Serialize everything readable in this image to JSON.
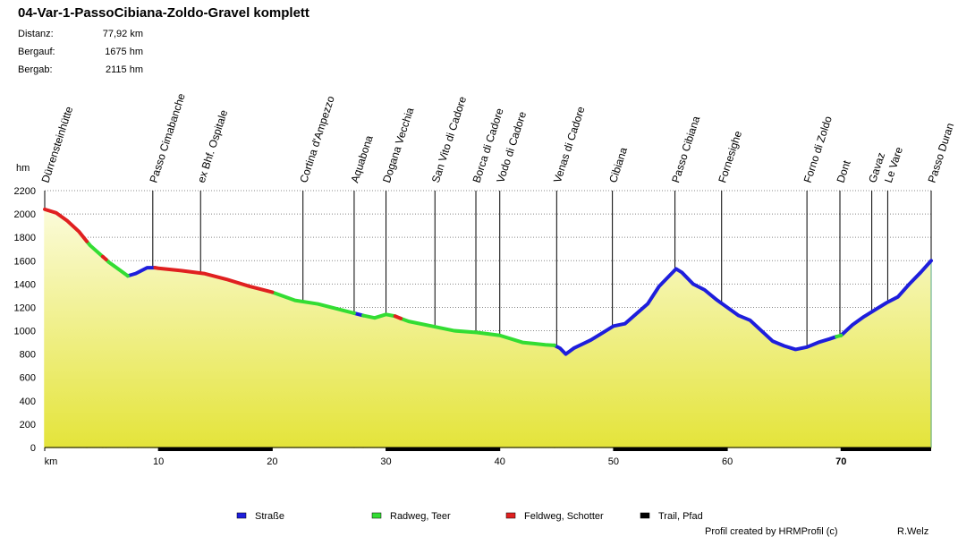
{
  "chart_data": {
    "type": "line",
    "title": "04-Var-1-PassoCibiana-Zoldo-Gravel komplett",
    "info": [
      {
        "label": "Distanz:",
        "value": "77,92 km"
      },
      {
        "label": "Bergauf:",
        "value": "1675 hm"
      },
      {
        "label": "Bergab:",
        "value": "2115 hm"
      }
    ],
    "y_label": "hm",
    "xlim": [
      0,
      77.92
    ],
    "xticks": [
      {
        "value": 0,
        "label": "km"
      },
      10,
      20,
      30,
      40,
      50,
      60,
      70
    ],
    "ylim": [
      0,
      2200
    ],
    "yticks": [
      0,
      200,
      400,
      600,
      800,
      1000,
      1200,
      1400,
      1600,
      1800,
      2000,
      2200
    ],
    "grid": true,
    "series": [
      {
        "name": "Straße",
        "color": "#1e1edc",
        "x": [
          7.3,
          8,
          9,
          9.7,
          null,
          27.2,
          28,
          null,
          44.8,
          45.3,
          45.8,
          46.5,
          48,
          49,
          50,
          51,
          53,
          54,
          55.5,
          56,
          57,
          58,
          59,
          60,
          61,
          62,
          63,
          64,
          65,
          66,
          67,
          68,
          69,
          69.6,
          null,
          70,
          71,
          72,
          73,
          74,
          75,
          76,
          77,
          77.92
        ],
        "values": [
          1470,
          1490,
          1540,
          1540,
          null,
          1150,
          1130,
          null,
          875,
          850,
          800,
          850,
          920,
          980,
          1040,
          1060,
          1230,
          1380,
          1530,
          1500,
          1400,
          1350,
          1270,
          1200,
          1130,
          1090,
          1000,
          910,
          870,
          840,
          860,
          900,
          930,
          950,
          null,
          960,
          1050,
          1120,
          1180,
          1240,
          1290,
          1400,
          1500,
          1600
        ]
      },
      {
        "name": "Radweg, Teer",
        "color": "#33dd33",
        "x": [
          3.7,
          4,
          5.1,
          null,
          5.4,
          5.6,
          7.3,
          null,
          20,
          22,
          24,
          26,
          27.2,
          null,
          28,
          29,
          30,
          30.8,
          null,
          31.3,
          32,
          34,
          36,
          38,
          40,
          42,
          43,
          44,
          44.8,
          null,
          69.6,
          70
        ],
        "values": [
          1765,
          1730,
          1635,
          null,
          1610,
          1590,
          1470,
          null,
          1330,
          1260,
          1230,
          1180,
          1150,
          null,
          1130,
          1110,
          1140,
          1125,
          null,
          1105,
          1080,
          1040,
          1000,
          985,
          960,
          900,
          890,
          880,
          875,
          null,
          950,
          960
        ]
      },
      {
        "name": "Feldweg, Schotter",
        "color": "#e02020",
        "x": [
          0,
          1,
          2,
          3,
          3.7,
          null,
          5.1,
          5.4,
          null,
          9.7,
          10,
          12,
          14,
          16,
          18,
          20,
          null,
          30.8,
          31.3
        ],
        "values": [
          2040,
          2010,
          1940,
          1850,
          1765,
          null,
          1635,
          1610,
          null,
          1540,
          1535,
          1515,
          1490,
          1440,
          1380,
          1330,
          null,
          1125,
          1105
        ]
      },
      {
        "name": "Trail, Pfad",
        "color": "#000000",
        "x": [],
        "values": []
      }
    ],
    "waypoints": [
      {
        "name": "Dürrensteinhütte",
        "km": 0
      },
      {
        "name": "Passo Cimabanche",
        "km": 9.5
      },
      {
        "name": "ex Bhf. Ospitale",
        "km": 13.7
      },
      {
        "name": "Cortina d'Ampezzo",
        "km": 22.7
      },
      {
        "name": "Aquabona",
        "km": 27.2
      },
      {
        "name": "Dogana Vecchia",
        "km": 30
      },
      {
        "name": "San Vito di Cadore",
        "km": 34.3
      },
      {
        "name": "Borca di Cadore",
        "km": 37.9
      },
      {
        "name": "Vodo di Cadore",
        "km": 40
      },
      {
        "name": "Venas di Cadore",
        "km": 45
      },
      {
        "name": "Cibiana",
        "km": 49.9
      },
      {
        "name": "Passo Cibiana",
        "km": 55.4
      },
      {
        "name": "Fornesighe",
        "km": 59.5
      },
      {
        "name": "Forno di Zoldo",
        "km": 67
      },
      {
        "name": "Dont",
        "km": 69.9
      },
      {
        "name": "Gavaz",
        "km": 72.7
      },
      {
        "name": "Le Vare",
        "km": 74.1
      },
      {
        "name": "Passo Duran",
        "km": 77.92
      }
    ],
    "footer": {
      "credit": "Profil created by HRMProfil (c)",
      "author": "R.Welz"
    }
  }
}
